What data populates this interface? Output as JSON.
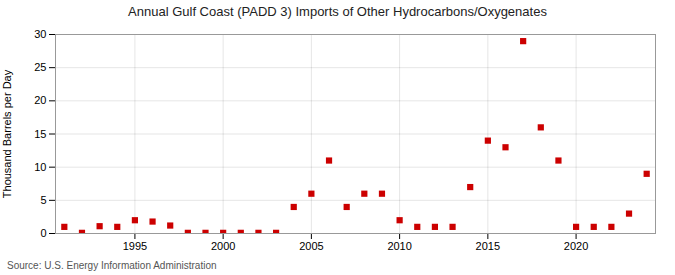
{
  "chart_data": {
    "type": "scatter",
    "title": "Annual Gulf Coast (PADD 3) Imports of Other Hydrocarbons/Oxygenates",
    "ylabel": "Thousand Barrels per Day",
    "annotation": "Source: U.S. Energy Information Administration",
    "x": [
      1991,
      1992,
      1993,
      1994,
      1995,
      1996,
      1997,
      1998,
      1999,
      2000,
      2001,
      2002,
      2003,
      2004,
      2005,
      2006,
      2007,
      2008,
      2009,
      2010,
      2011,
      2012,
      2013,
      2014,
      2015,
      2016,
      2017,
      2018,
      2019,
      2020,
      2021,
      2022,
      2023,
      2024
    ],
    "values": [
      1.0,
      0.1,
      1.1,
      1.0,
      2.0,
      1.8,
      1.2,
      0.1,
      0.1,
      0.1,
      0.1,
      0.1,
      0.1,
      4.0,
      6.0,
      11.0,
      4.0,
      6.0,
      6.0,
      2.0,
      1.0,
      1.0,
      1.0,
      7.0,
      14.0,
      13.0,
      29.0,
      16.0,
      11.0,
      1.0,
      1.0,
      1.0,
      3.0,
      9.0
    ],
    "color": "#cc0000",
    "marker": "square",
    "xlim": [
      1990.5,
      2024.5
    ],
    "ylim": [
      0,
      30
    ],
    "xticks": [
      1995,
      2000,
      2005,
      2010,
      2015,
      2020
    ],
    "yticks": [
      0,
      5,
      10,
      15,
      20,
      25,
      30
    ],
    "grid": true
  }
}
